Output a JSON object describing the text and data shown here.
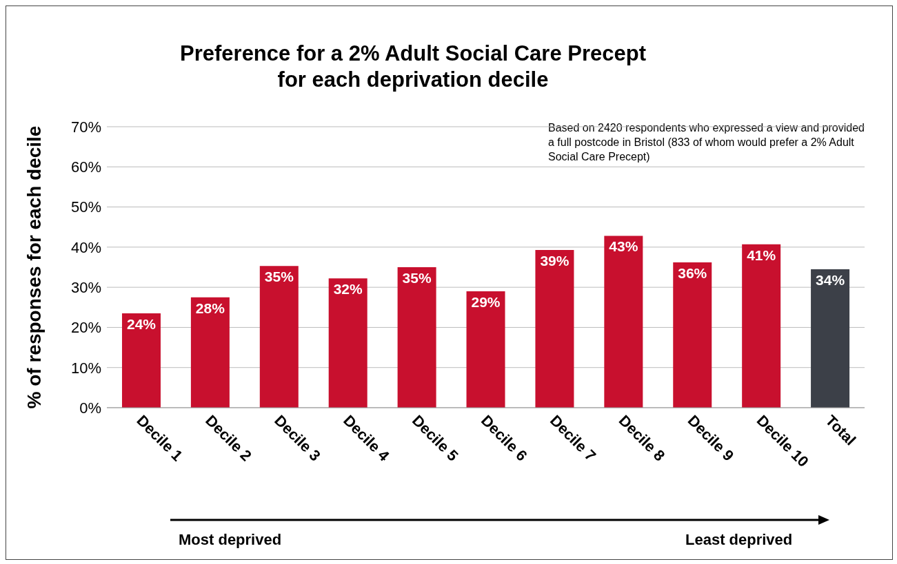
{
  "chart_data": {
    "type": "bar",
    "title": "Preference for a 2% Adult Social Care Precept\nfor each deprivation decile",
    "ylabel": "% of responses for each decile",
    "categories": [
      "Decile 1",
      "Decile 2",
      "Decile 3",
      "Decile 4",
      "Decile 5",
      "Decile 6",
      "Decile 7",
      "Decile 8",
      "Decile 9",
      "Decile 10",
      "Total"
    ],
    "values": [
      23.5,
      27.5,
      35.3,
      32.2,
      35,
      29,
      39.3,
      42.8,
      36.2,
      40.7,
      34.5
    ],
    "value_labels": [
      "24%",
      "28%",
      "35%",
      "32%",
      "35%",
      "29%",
      "39%",
      "43%",
      "36%",
      "41%",
      "34%"
    ],
    "colors": [
      "#c8102e",
      "#c8102e",
      "#c8102e",
      "#c8102e",
      "#c8102e",
      "#c8102e",
      "#c8102e",
      "#c8102e",
      "#c8102e",
      "#c8102e",
      "#3c4048"
    ],
    "ylim": [
      0,
      70
    ],
    "yticks": [
      {
        "value": 0,
        "label": "0%"
      },
      {
        "value": 10,
        "label": "10%"
      },
      {
        "value": 20,
        "label": "20%"
      },
      {
        "value": 30,
        "label": "30%"
      },
      {
        "value": 40,
        "label": "40%"
      },
      {
        "value": 50,
        "label": "50%"
      },
      {
        "value": 60,
        "label": "60%"
      },
      {
        "value": 70,
        "label": "70%"
      }
    ],
    "grid": "y",
    "legend": false,
    "annotations": [
      "Based on 2420 respondents who expressed a view and provided a full postcode in Bristol (833 of whom would prefer a 2% Adult Social Care Precept)",
      "Most deprived",
      "Least deprived"
    ]
  }
}
